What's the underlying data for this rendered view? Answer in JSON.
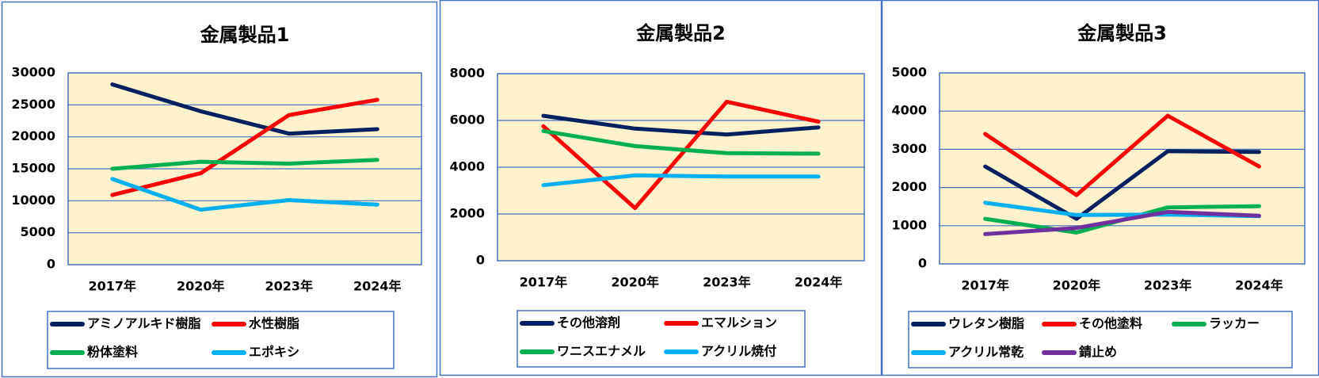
{
  "colors": {
    "plot_bg": "#FFF2CC",
    "grid": "#4472C4",
    "frame": "#4472C4",
    "navy": "#002060",
    "red": "#FF0000",
    "green": "#00B050",
    "lightblue": "#00B0F0",
    "purple": "#7030A0"
  },
  "chart_data": [
    {
      "type": "line",
      "title": "金属製品1",
      "categories": [
        "2017年",
        "2020年",
        "2023年",
        "2024年"
      ],
      "ylim": [
        0,
        30000
      ],
      "yticks": [
        "0",
        "5000",
        "10000",
        "15000",
        "20000",
        "25000",
        "30000"
      ],
      "grid": true,
      "legend": "bottom",
      "series": [
        {
          "name": "アミノアルキド樹脂",
          "color": "#002060",
          "values": [
            28200,
            24000,
            20500,
            21200
          ]
        },
        {
          "name": "水性樹脂",
          "color": "#FF0000",
          "values": [
            10900,
            14300,
            23400,
            25800
          ]
        },
        {
          "name": "粉体塗料",
          "color": "#00B050",
          "values": [
            15000,
            16100,
            15800,
            16400
          ]
        },
        {
          "name": "エポキシ",
          "color": "#00B0F0",
          "values": [
            13400,
            8600,
            10100,
            9400
          ]
        }
      ]
    },
    {
      "type": "line",
      "title": "金属製品2",
      "categories": [
        "2017年",
        "2020年",
        "2023年",
        "2024年"
      ],
      "ylim": [
        0,
        8000
      ],
      "yticks": [
        "0",
        "2000",
        "4000",
        "6000",
        "8000"
      ],
      "grid": true,
      "legend": "bottom",
      "series": [
        {
          "name": "その他溶剤",
          "color": "#002060",
          "values": [
            6200,
            5650,
            5400,
            5700
          ]
        },
        {
          "name": "エマルション",
          "color": "#FF0000",
          "values": [
            5750,
            2250,
            6800,
            5950
          ]
        },
        {
          "name": "ワニスエナメル",
          "color": "#00B050",
          "values": [
            5550,
            4900,
            4600,
            4580
          ]
        },
        {
          "name": "アクリル焼付",
          "color": "#00B0F0",
          "values": [
            3230,
            3650,
            3600,
            3600
          ]
        }
      ]
    },
    {
      "type": "line",
      "title": "金属製品3",
      "categories": [
        "2017年",
        "2020年",
        "2023年",
        "2024年"
      ],
      "ylim": [
        0,
        5000
      ],
      "yticks": [
        "0",
        "1000",
        "2000",
        "3000",
        "4000",
        "5000"
      ],
      "grid": true,
      "legend": "bottom",
      "series": [
        {
          "name": "ウレタン樹脂",
          "color": "#002060",
          "values": [
            2550,
            1180,
            2950,
            2930
          ]
        },
        {
          "name": "その他塗料",
          "color": "#FF0000",
          "values": [
            3400,
            1800,
            3880,
            2550
          ]
        },
        {
          "name": "ラッカー",
          "color": "#00B050",
          "values": [
            1180,
            820,
            1480,
            1510
          ]
        },
        {
          "name": "アクリル常乾",
          "color": "#00B0F0",
          "values": [
            1600,
            1280,
            1290,
            1250
          ]
        },
        {
          "name": "錆止め",
          "color": "#7030A0",
          "values": [
            780,
            940,
            1360,
            1260
          ]
        }
      ]
    }
  ]
}
